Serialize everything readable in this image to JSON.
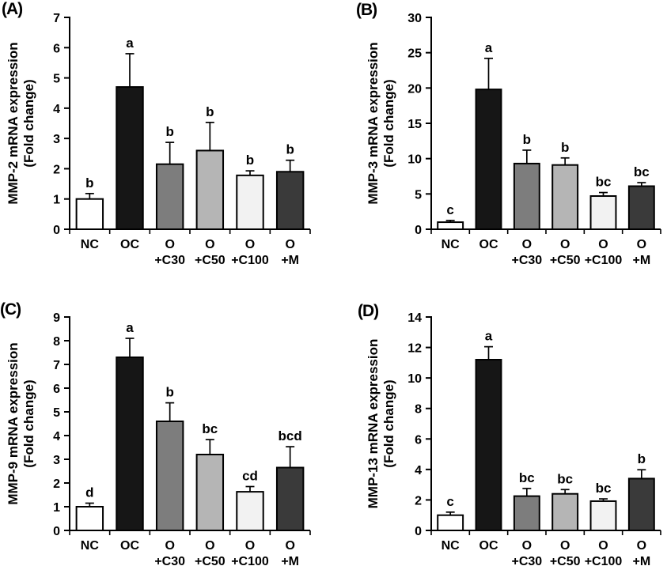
{
  "figure": {
    "description": "Four-panel bar chart figure of MMP mRNA expression (fold change)",
    "background_color": "#ffffff",
    "axis_color": "#000000",
    "text_color": "#000000"
  },
  "categories": [
    "NC",
    "OC",
    "O+C30",
    "O+C50",
    "O+C100",
    "O+M"
  ],
  "categories_display": [
    [
      "NC",
      ""
    ],
    [
      "OC",
      ""
    ],
    [
      "O",
      "+C30"
    ],
    [
      "O",
      "+C50"
    ],
    [
      "O",
      "+C100"
    ],
    [
      "O",
      "+M"
    ]
  ],
  "bar_colors": [
    "#ffffff",
    "#161616",
    "#7d7d7d",
    "#b5b5b5",
    "#f2f2f2",
    "#3a3a3a"
  ],
  "chart_data": [
    {
      "panel": "(A)",
      "type": "bar",
      "ylabel_line1": "MMP-2 mRNA expression",
      "ylabel_line2": "(Fold change)",
      "ylim": [
        0,
        7
      ],
      "ytick_step": 1,
      "grid": false,
      "legend": "none",
      "categories": [
        "NC",
        "OC",
        "O+C30",
        "O+C50",
        "O+C100",
        "O+M"
      ],
      "values": [
        1.0,
        4.7,
        2.15,
        2.6,
        1.78,
        1.9
      ],
      "errors": [
        0.18,
        1.1,
        0.72,
        0.93,
        0.15,
        0.38
      ],
      "sig_letters": [
        "b",
        "a",
        "b",
        "b",
        "b",
        "b"
      ]
    },
    {
      "panel": "(B)",
      "type": "bar",
      "ylabel_line1": "MMP-3 mRNA expression",
      "ylabel_line2": "(Fold change)",
      "ylim": [
        0,
        30
      ],
      "ytick_step": 5,
      "grid": false,
      "legend": "none",
      "categories": [
        "NC",
        "OC",
        "O+C30",
        "O+C50",
        "O+C100",
        "O+M"
      ],
      "values": [
        1.0,
        19.8,
        9.3,
        9.1,
        4.7,
        6.1
      ],
      "errors": [
        0.25,
        4.4,
        1.9,
        1.0,
        0.5,
        0.5
      ],
      "sig_letters": [
        "c",
        "a",
        "b",
        "b",
        "bc",
        "bc"
      ]
    },
    {
      "panel": "(C)",
      "type": "bar",
      "ylabel_line1": "MMP-9 mRNA expression",
      "ylabel_line2": "(Fold change)",
      "ylim": [
        0,
        9
      ],
      "ytick_step": 1,
      "grid": false,
      "legend": "none",
      "categories": [
        "NC",
        "OC",
        "O+C30",
        "O+C50",
        "O+C100",
        "O+M"
      ],
      "values": [
        1.0,
        7.3,
        4.6,
        3.2,
        1.63,
        2.65
      ],
      "errors": [
        0.15,
        0.8,
        0.78,
        0.63,
        0.22,
        0.88
      ],
      "sig_letters": [
        "d",
        "a",
        "b",
        "bc",
        "cd",
        "bcd"
      ]
    },
    {
      "panel": "(D)",
      "type": "bar",
      "ylabel_line1": "MMP-13 mRNA expression",
      "ylabel_line2": "(Fold change)",
      "ylim": [
        0,
        14
      ],
      "ytick_step": 2,
      "grid": false,
      "legend": "none",
      "categories": [
        "NC",
        "OC",
        "O+C30",
        "O+C50",
        "O+C100",
        "O+M"
      ],
      "values": [
        1.0,
        11.2,
        2.25,
        2.4,
        1.92,
        3.4
      ],
      "errors": [
        0.2,
        0.85,
        0.5,
        0.28,
        0.15,
        0.58
      ],
      "sig_letters": [
        "c",
        "a",
        "bc",
        "bc",
        "bc",
        "b"
      ]
    }
  ]
}
